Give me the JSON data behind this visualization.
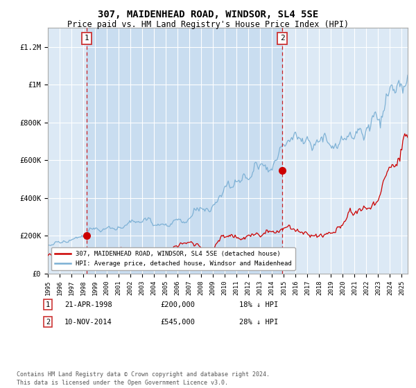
{
  "title": "307, MAIDENHEAD ROAD, WINDSOR, SL4 5SE",
  "subtitle": "Price paid vs. HM Land Registry's House Price Index (HPI)",
  "title_fontsize": 10,
  "subtitle_fontsize": 8.5,
  "background_color": "#ffffff",
  "plot_bg_color": "#dce9f5",
  "grid_color": "#ffffff",
  "x_start_year": 1995,
  "x_end_year": 2025,
  "ylim": [
    0,
    1300000
  ],
  "yticks": [
    0,
    200000,
    400000,
    600000,
    800000,
    1000000,
    1200000
  ],
  "ytick_labels": [
    "£0",
    "£200K",
    "£400K",
    "£600K",
    "£800K",
    "£1M",
    "£1.2M"
  ],
  "red_line_color": "#cc0000",
  "blue_line_color": "#7aafd4",
  "marker_color": "#cc0000",
  "vline_color": "#cc0000",
  "event1_year": 1998.3,
  "event1_price": 200000,
  "event1_label": "1",
  "event1_date": "21-APR-1998",
  "event1_price_str": "£200,000",
  "event1_pct": "18% ↓ HPI",
  "event2_year": 2014.87,
  "event2_price": 545000,
  "event2_label": "2",
  "event2_date": "10-NOV-2014",
  "event2_price_str": "£545,000",
  "event2_pct": "28% ↓ HPI",
  "legend_label_red": "307, MAIDENHEAD ROAD, WINDSOR, SL4 5SE (detached house)",
  "legend_label_blue": "HPI: Average price, detached house, Windsor and Maidenhead",
  "footer": "Contains HM Land Registry data © Crown copyright and database right 2024.\nThis data is licensed under the Open Government Licence v3.0.",
  "footer_fontsize": 6.0,
  "figsize": [
    6.0,
    5.6
  ],
  "dpi": 100
}
